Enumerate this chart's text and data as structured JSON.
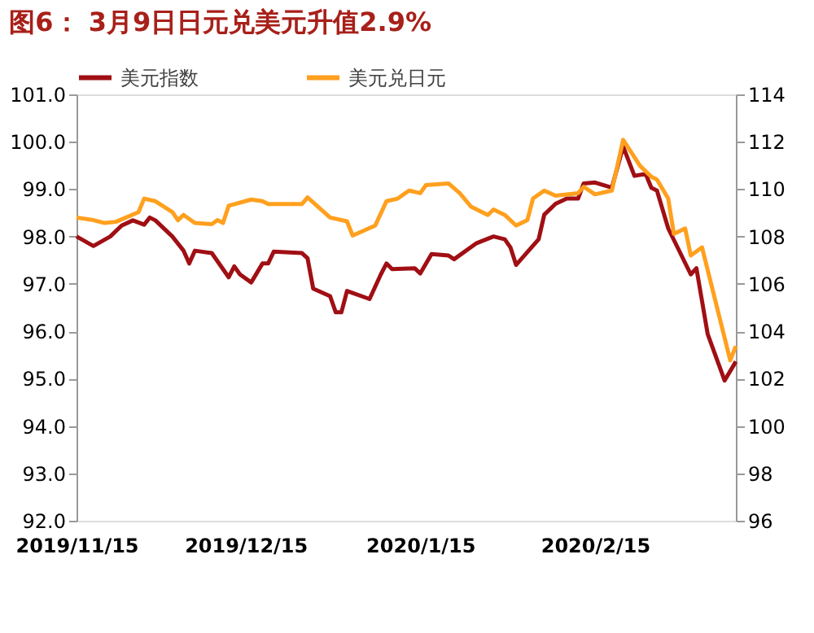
{
  "chart_data": {
    "type": "line",
    "title": "图6：  3月9日日元兑美元升值2.9%",
    "legend": "top",
    "grid": false,
    "marker": "none",
    "line_style": "solid",
    "xlim": [
      "2019-11-15",
      "2020-03-11"
    ],
    "xticks": [
      {
        "value": "2019-11-15",
        "label": "2019/11/15"
      },
      {
        "value": "2019-12-15",
        "label": "2019/12/15"
      },
      {
        "value": "2020-01-15",
        "label": "2020/1/15"
      },
      {
        "value": "2020-02-15",
        "label": "2020/2/15"
      }
    ],
    "ylim": [
      92,
      101
    ],
    "yticks": [
      {
        "value": 92,
        "label": "92.0"
      },
      {
        "value": 93,
        "label": "93.0"
      },
      {
        "value": 94,
        "label": "94.0"
      },
      {
        "value": 95,
        "label": "95.0"
      },
      {
        "value": 96,
        "label": "96.0"
      },
      {
        "value": 97,
        "label": "97.0"
      },
      {
        "value": 98,
        "label": "98.0"
      },
      {
        "value": 99,
        "label": "99.0"
      },
      {
        "value": 100,
        "label": "100.0"
      },
      {
        "value": 101,
        "label": "101.0"
      }
    ],
    "y2lim": [
      96,
      114
    ],
    "y2ticks": [
      96,
      98,
      100,
      102,
      104,
      106,
      108,
      110,
      112,
      114
    ],
    "series": [
      {
        "name": "美元指数",
        "color": "#a00f14",
        "x": [
          "2019-11-15",
          "2019-11-18",
          "2019-11-21",
          "2019-11-23",
          "2019-11-25",
          "2019-11-27",
          "2019-11-28",
          "2019-11-29",
          "2019-12-02",
          "2019-12-04",
          "2019-12-05",
          "2019-12-06",
          "2019-12-09",
          "2019-12-12",
          "2019-12-13",
          "2019-12-14",
          "2019-12-16",
          "2019-12-18",
          "2019-12-19",
          "2019-12-20",
          "2019-12-25",
          "2019-12-26",
          "2019-12-27",
          "2019-12-30",
          "2019-12-31",
          "2020-01-01",
          "2020-01-02",
          "2020-01-06",
          "2020-01-08",
          "2020-01-09",
          "2020-01-10",
          "2020-01-14",
          "2020-01-15",
          "2020-01-17",
          "2020-01-20",
          "2020-01-21",
          "2020-01-25",
          "2020-01-28",
          "2020-01-30",
          "2020-01-31",
          "2020-02-01",
          "2020-02-05",
          "2020-02-06",
          "2020-02-08",
          "2020-02-10",
          "2020-02-12",
          "2020-02-13",
          "2020-02-15",
          "2020-02-18",
          "2020-02-20",
          "2020-02-22",
          "2020-02-24",
          "2020-02-25",
          "2020-02-26",
          "2020-02-28",
          "2020-03-03",
          "2020-03-04",
          "2020-03-06",
          "2020-03-09",
          "2020-03-11"
        ],
        "values": [
          98.0,
          97.8,
          98.0,
          98.23,
          98.34,
          98.25,
          98.4,
          98.34,
          98.0,
          97.7,
          97.43,
          97.7,
          97.65,
          97.14,
          97.37,
          97.2,
          97.03,
          97.43,
          97.43,
          97.68,
          97.65,
          97.54,
          96.9,
          96.74,
          96.4,
          96.4,
          96.85,
          96.68,
          97.2,
          97.43,
          97.31,
          97.33,
          97.22,
          97.63,
          97.6,
          97.52,
          97.86,
          98.0,
          97.94,
          97.77,
          97.4,
          97.94,
          98.46,
          98.69,
          98.8,
          98.8,
          99.12,
          99.14,
          99.03,
          99.9,
          99.28,
          99.32,
          99.03,
          98.97,
          98.17,
          97.2,
          97.33,
          95.94,
          94.96,
          95.36
        ]
      },
      {
        "name": "美元兑日元",
        "color": "#ffa01e",
        "axis": "y2",
        "x": [
          "2019-11-15",
          "2019-11-18",
          "2019-11-20",
          "2019-11-22",
          "2019-11-26",
          "2019-11-27",
          "2019-11-29",
          "2019-12-02",
          "2019-12-03",
          "2019-12-04",
          "2019-12-06",
          "2019-12-09",
          "2019-12-10",
          "2019-12-11",
          "2019-12-12",
          "2019-12-16",
          "2019-12-18",
          "2019-12-19",
          "2019-12-25",
          "2019-12-26",
          "2019-12-30",
          "2020-01-02",
          "2020-01-03",
          "2020-01-07",
          "2020-01-09",
          "2020-01-11",
          "2020-01-13",
          "2020-01-15",
          "2020-01-16",
          "2020-01-20",
          "2020-01-22",
          "2020-01-24",
          "2020-01-27",
          "2020-01-28",
          "2020-01-30",
          "2020-02-01",
          "2020-02-03",
          "2020-02-04",
          "2020-02-06",
          "2020-02-08",
          "2020-02-12",
          "2020-02-13",
          "2020-02-15",
          "2020-02-18",
          "2020-02-20",
          "2020-02-23",
          "2020-02-25",
          "2020-02-26",
          "2020-02-28",
          "2020-02-29",
          "2020-03-02",
          "2020-03-03",
          "2020-03-05",
          "2020-03-10",
          "2020-03-11"
        ],
        "values": [
          108.8,
          108.69,
          108.57,
          108.62,
          109.03,
          109.6,
          109.49,
          109.03,
          108.69,
          108.91,
          108.57,
          108.52,
          108.69,
          108.57,
          109.3,
          109.56,
          109.49,
          109.37,
          109.37,
          109.65,
          108.8,
          108.64,
          108.04,
          108.46,
          109.49,
          109.6,
          109.94,
          109.83,
          110.17,
          110.24,
          109.83,
          109.26,
          108.91,
          109.14,
          108.91,
          108.46,
          108.69,
          109.6,
          109.94,
          109.72,
          109.83,
          110.1,
          109.78,
          109.94,
          112.08,
          110.98,
          110.52,
          110.4,
          109.6,
          108.11,
          108.34,
          107.2,
          107.54,
          102.77,
          103.37
        ]
      }
    ]
  }
}
